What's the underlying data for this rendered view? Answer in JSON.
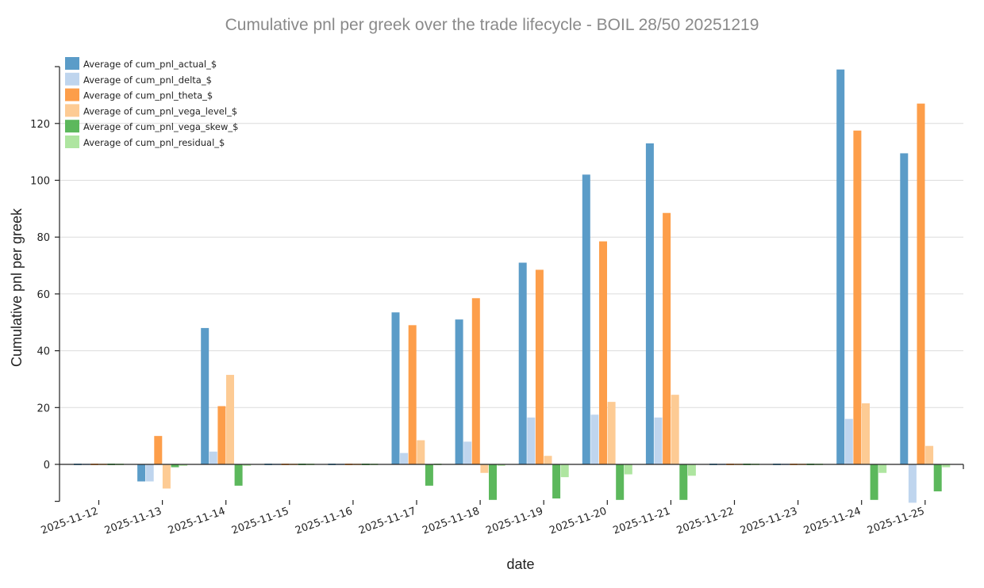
{
  "chart_data": {
    "type": "bar",
    "title": "Cumulative pnl per greek over the trade lifecycle - BOIL 28/50 20251219",
    "xlabel": "date",
    "ylabel": "Cumulative pnl per greek",
    "ylim": [
      -13,
      140
    ],
    "yticks": [
      0,
      20,
      40,
      60,
      80,
      100,
      120
    ],
    "grid": true,
    "legend_position": "top-left",
    "categories": [
      "2025-11-12",
      "2025-11-13",
      "2025-11-14",
      "2025-11-15",
      "2025-11-16",
      "2025-11-17",
      "2025-11-18",
      "2025-11-19",
      "2025-11-20",
      "2025-11-21",
      "2025-11-22",
      "2025-11-23",
      "2025-11-24",
      "2025-11-25"
    ],
    "series": [
      {
        "name": "Average of cum_pnl_actual_$",
        "color": "#5b9cc8",
        "values": [
          0,
          -6,
          48,
          0,
          0,
          53.5,
          51,
          71,
          102,
          113,
          0,
          0,
          139,
          109.5
        ]
      },
      {
        "name": "Average of cum_pnl_delta_$",
        "color": "#bfd5ee",
        "values": [
          0,
          -6,
          4.5,
          0,
          0,
          4,
          8,
          16.5,
          17.5,
          16.5,
          0,
          0,
          16,
          -13.5
        ]
      },
      {
        "name": "Average of cum_pnl_theta_$",
        "color": "#fd9e4a",
        "values": [
          0,
          10,
          20.5,
          0,
          0,
          49,
          58.5,
          68.5,
          78.5,
          88.5,
          0,
          0,
          117.5,
          127
        ]
      },
      {
        "name": "Average of cum_pnl_vega_level_$",
        "color": "#fdcb94",
        "values": [
          0,
          -8.5,
          31.5,
          0,
          0,
          8.5,
          -3,
          3,
          22,
          24.5,
          0,
          0,
          21.5,
          6.5
        ]
      },
      {
        "name": "Average of cum_pnl_vega_skew_$",
        "color": "#5cb85c",
        "values": [
          0,
          -1,
          -7.5,
          0,
          0,
          -7.5,
          -12.5,
          -12,
          -12.5,
          -12.5,
          0,
          0,
          -12.5,
          -9.5
        ]
      },
      {
        "name": "Average of cum_pnl_residual_$",
        "color": "#aee5a0",
        "values": [
          0,
          -0.5,
          -0.5,
          0,
          0,
          0,
          -0.5,
          -4.5,
          -3.5,
          -4,
          0,
          0,
          -3,
          -1
        ]
      }
    ]
  }
}
